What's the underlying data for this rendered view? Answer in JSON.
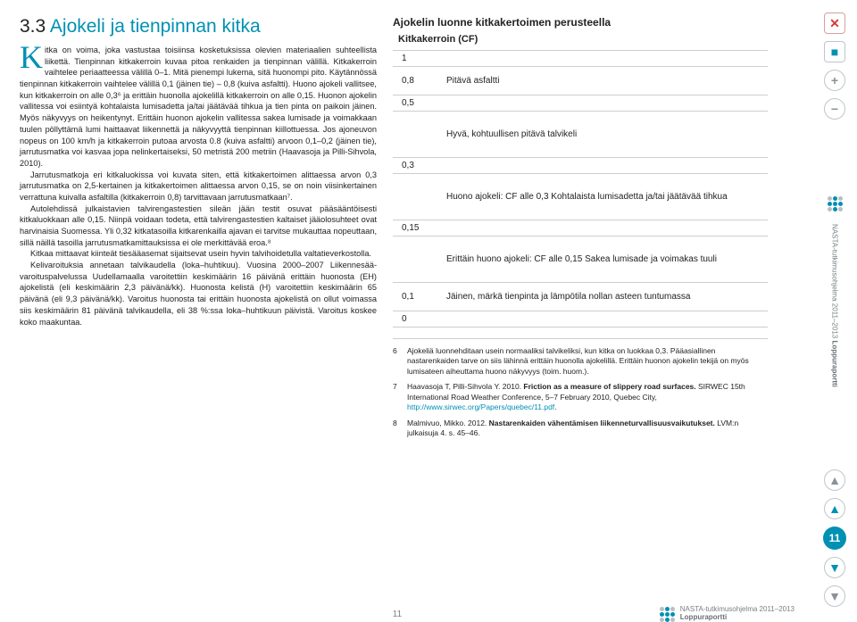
{
  "section": {
    "number": "3.3",
    "title": "Ajokeli ja tienpinnan kitka",
    "dropcap": "K"
  },
  "body": {
    "p1": "itka on voima, joka vastustaa toisiinsa kosketuksissa olevien materiaalien suhteellista liikettä. Tienpinnan kitkakerroin kuvaa pitoa renkaiden ja tienpinnan välillä. Kitkakerroin vaihtelee periaatteessa välillä 0–1. Mitä pienempi lukema, sitä huonompi pito. Käytännössä tienpinnan kitkakerroin vaihtelee välillä 0,1 (jäinen tie) – 0,8 (kuiva asfaltti). Huono ajokeli vallitsee, kun kitkakerroin on alle 0,3⁶ ja erittäin huonolla ajokelillä kitkakerroin on alle 0,15. Huonon ajokelin vallitessa voi esiintyä kohtalaista lumisadetta ja/tai jäätävää tihkua ja tien pinta on paikoin jäinen. Myös näkyvyys on heikentynyt. Erittäin huonon ajokelin vallitessa sakea lumisade ja voimakkaan tuulen pöllyttämä lumi haittaavat liikennettä ja näkyvyyttä tienpinnan kiillottuessa. Jos ajoneuvon nopeus on 100 km/h ja kitkakerroin putoaa arvosta 0.8 (kuiva asfaltti) arvoon 0,1–0,2 (jäinen tie), jarrutusmatka voi kasvaa jopa nelinkertaiseksi, 50 metristä 200 metriin (Haavasoja ja Pilli-Sihvola, 2010).",
    "p2": "Jarrutusmatkoja eri kitkaluokissa voi kuvata siten, että kitkakertoimen alittaessa arvon 0,3 jarrutusmatka on 2,5-kertainen ja kitkakertoimen alittaessa arvon 0,15, se on noin viisinkertainen verrattuna kuivalla asfaltilla (kitkakerroin 0,8) tarvittavaan jarrutusmatkaan⁷.",
    "p3": "Autolehdissä julkaistavien talvirengastestien sileän jään testit osuvat pääsääntöisesti kitkaluokkaan alle 0,15. Niinpä voidaan todeta, että talvirengastestien kaltaiset jääolosuhteet ovat harvinaisia Suomessa. Yli 0,32 kitkatasoilla kitkarenkailla ajavan ei tarvitse mukauttaa nopeuttaan, sillä näillä tasoilla jarrutusmatkamittauksissa ei ole merkittävää eroa.⁸",
    "p4": "Kitkaa mittaavat kiinteät tiesääasemat sijaitsevat usein hyvin talvihoidetulla valtatieverkostolla.",
    "p5": "Kelivaroituksia annetaan talvikaudella (loka–huhtikuu). Vuosina 2000–2007 Liikennesää-varoituspalvelussa Uudellamaalla varoitettiin keskimäärin 16 päivänä erittäin huonosta (EH) ajokelistä (eli keskimäärin 2,3 päivänä/kk). Huonosta kelistä (H) varoitettiin keskimäärin 65 päivänä (eli 9,3 päivänä/kk). Varoitus huonosta tai erittäin huonosta ajokelistä on ollut voimassa siis keskimäärin 81 päivänä talvikaudella, eli 38 %:ssa loka–huhtikuun päivistä. Varoitus koskee koko maakuntaa."
  },
  "table": {
    "title": "Ajokelin luonne kitkakertoimen perusteella",
    "label": "Kitkakerroin (CF)",
    "rows": [
      {
        "val": "1",
        "desc": ""
      },
      {
        "val": "0,8",
        "desc": "Pitävä asfaltti"
      },
      {
        "val": "0,5",
        "desc": ""
      },
      {
        "val": "",
        "desc": "Hyvä, kohtuullisen pitävä talvikeli"
      },
      {
        "val": "0,3",
        "desc": ""
      },
      {
        "val": "",
        "desc": "Huono ajokeli: CF alle 0,3\nKohtalaista lumisadetta ja/tai jäätävää tihkua"
      },
      {
        "val": "0,15",
        "desc": ""
      },
      {
        "val": "",
        "desc": "Erittäin huono ajokeli: CF alle 0,15\nSakea lumisade ja voimakas tuuli"
      },
      {
        "val": "0,1",
        "desc": "Jäinen, märkä tienpinta ja lämpötila nollan asteen tuntumassa"
      },
      {
        "val": "0",
        "desc": ""
      }
    ]
  },
  "footnotes": {
    "f6": "Ajokeliä luonnehditaan usein normaaliksi talvikeliksi, kun kitka on luokkaa 0,3. Pääasiallinen nastarenkaiden tarve on siis lähinnä erittäin huonolla ajokelillä. Erittäin huonon ajokelin tekijä on myös lumisateen aiheuttama huono näkyvyys (toim. huom.).",
    "f7a": "Haavasoja T, Pilli-Sihvola Y. 2010. ",
    "f7b": "Friction as a measure of slippery road surfaces.",
    "f7c": " SIRWEC 15th International Road Weather Conference, 5–7 February 2010, Quebec City, ",
    "f7link": "http://www.sirwec.org/Papers/quebec/11.pdf",
    "f8a": "Malmivuo, Mikko. 2012. ",
    "f8b": "Nastarenkaiden vähentämisen liikenneturvallisuusvaikutukset.",
    "f8c": " LVM:n julkaisuja 4. s. 45–46."
  },
  "footer": {
    "page": "11",
    "brand1": "NASTA-tutkimusohjelma 2011–2013",
    "brand2": "Loppuraportti"
  },
  "sidebar": {
    "vtext1": "NASTA-tutkimusohjelma 2011–2013",
    "vtext2": "Loppuraportti",
    "page": "11"
  }
}
